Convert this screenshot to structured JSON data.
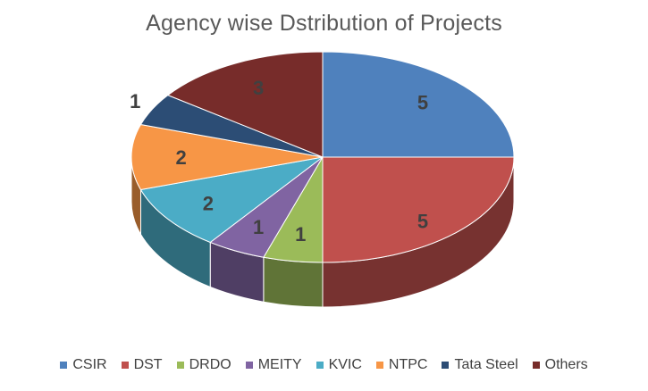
{
  "chart_data": {
    "type": "pie",
    "title": "Agency wise Dstribution of Projects",
    "labels": [
      "CSIR",
      "DST",
      "DRDO",
      "MEITY",
      "KVIC",
      "NTPC",
      "Tata Steel",
      "Others"
    ],
    "values": [
      5,
      5,
      1,
      1,
      2,
      2,
      1,
      3
    ],
    "colors": [
      "#4F81BD",
      "#C0504D",
      "#9BBB59",
      "#8064A2",
      "#4BACC6",
      "#F79646",
      "#2C4D75",
      "#772C2A"
    ],
    "style": "3d",
    "legend_position": "bottom"
  }
}
